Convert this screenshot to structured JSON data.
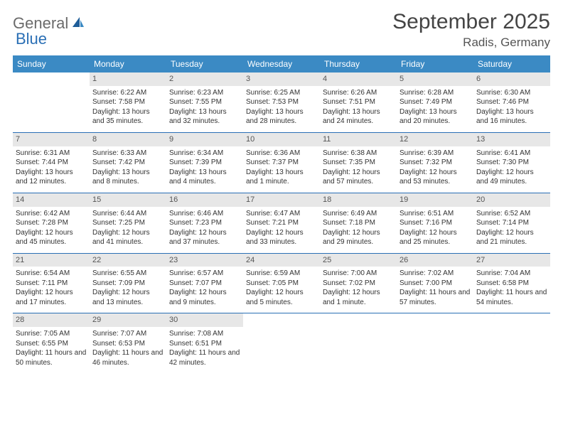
{
  "brand": {
    "general": "General",
    "blue": "Blue"
  },
  "title": "September 2025",
  "location": "Radis, Germany",
  "colors": {
    "header_bg": "#3b8ac4",
    "header_text": "#ffffff",
    "daynum_bg": "#e7e7e7",
    "daynum_text": "#555555",
    "rule": "#2a6fb5",
    "body_text": "#333333",
    "brand_gray": "#6b6b6b",
    "brand_blue": "#2a6fb5",
    "page_bg": "#ffffff"
  },
  "weekdays": [
    "Sunday",
    "Monday",
    "Tuesday",
    "Wednesday",
    "Thursday",
    "Friday",
    "Saturday"
  ],
  "weeks": [
    [
      {
        "n": "",
        "sr": "",
        "ss": "",
        "dl": ""
      },
      {
        "n": "1",
        "sr": "Sunrise: 6:22 AM",
        "ss": "Sunset: 7:58 PM",
        "dl": "Daylight: 13 hours and 35 minutes."
      },
      {
        "n": "2",
        "sr": "Sunrise: 6:23 AM",
        "ss": "Sunset: 7:55 PM",
        "dl": "Daylight: 13 hours and 32 minutes."
      },
      {
        "n": "3",
        "sr": "Sunrise: 6:25 AM",
        "ss": "Sunset: 7:53 PM",
        "dl": "Daylight: 13 hours and 28 minutes."
      },
      {
        "n": "4",
        "sr": "Sunrise: 6:26 AM",
        "ss": "Sunset: 7:51 PM",
        "dl": "Daylight: 13 hours and 24 minutes."
      },
      {
        "n": "5",
        "sr": "Sunrise: 6:28 AM",
        "ss": "Sunset: 7:49 PM",
        "dl": "Daylight: 13 hours and 20 minutes."
      },
      {
        "n": "6",
        "sr": "Sunrise: 6:30 AM",
        "ss": "Sunset: 7:46 PM",
        "dl": "Daylight: 13 hours and 16 minutes."
      }
    ],
    [
      {
        "n": "7",
        "sr": "Sunrise: 6:31 AM",
        "ss": "Sunset: 7:44 PM",
        "dl": "Daylight: 13 hours and 12 minutes."
      },
      {
        "n": "8",
        "sr": "Sunrise: 6:33 AM",
        "ss": "Sunset: 7:42 PM",
        "dl": "Daylight: 13 hours and 8 minutes."
      },
      {
        "n": "9",
        "sr": "Sunrise: 6:34 AM",
        "ss": "Sunset: 7:39 PM",
        "dl": "Daylight: 13 hours and 4 minutes."
      },
      {
        "n": "10",
        "sr": "Sunrise: 6:36 AM",
        "ss": "Sunset: 7:37 PM",
        "dl": "Daylight: 13 hours and 1 minute."
      },
      {
        "n": "11",
        "sr": "Sunrise: 6:38 AM",
        "ss": "Sunset: 7:35 PM",
        "dl": "Daylight: 12 hours and 57 minutes."
      },
      {
        "n": "12",
        "sr": "Sunrise: 6:39 AM",
        "ss": "Sunset: 7:32 PM",
        "dl": "Daylight: 12 hours and 53 minutes."
      },
      {
        "n": "13",
        "sr": "Sunrise: 6:41 AM",
        "ss": "Sunset: 7:30 PM",
        "dl": "Daylight: 12 hours and 49 minutes."
      }
    ],
    [
      {
        "n": "14",
        "sr": "Sunrise: 6:42 AM",
        "ss": "Sunset: 7:28 PM",
        "dl": "Daylight: 12 hours and 45 minutes."
      },
      {
        "n": "15",
        "sr": "Sunrise: 6:44 AM",
        "ss": "Sunset: 7:25 PM",
        "dl": "Daylight: 12 hours and 41 minutes."
      },
      {
        "n": "16",
        "sr": "Sunrise: 6:46 AM",
        "ss": "Sunset: 7:23 PM",
        "dl": "Daylight: 12 hours and 37 minutes."
      },
      {
        "n": "17",
        "sr": "Sunrise: 6:47 AM",
        "ss": "Sunset: 7:21 PM",
        "dl": "Daylight: 12 hours and 33 minutes."
      },
      {
        "n": "18",
        "sr": "Sunrise: 6:49 AM",
        "ss": "Sunset: 7:18 PM",
        "dl": "Daylight: 12 hours and 29 minutes."
      },
      {
        "n": "19",
        "sr": "Sunrise: 6:51 AM",
        "ss": "Sunset: 7:16 PM",
        "dl": "Daylight: 12 hours and 25 minutes."
      },
      {
        "n": "20",
        "sr": "Sunrise: 6:52 AM",
        "ss": "Sunset: 7:14 PM",
        "dl": "Daylight: 12 hours and 21 minutes."
      }
    ],
    [
      {
        "n": "21",
        "sr": "Sunrise: 6:54 AM",
        "ss": "Sunset: 7:11 PM",
        "dl": "Daylight: 12 hours and 17 minutes."
      },
      {
        "n": "22",
        "sr": "Sunrise: 6:55 AM",
        "ss": "Sunset: 7:09 PM",
        "dl": "Daylight: 12 hours and 13 minutes."
      },
      {
        "n": "23",
        "sr": "Sunrise: 6:57 AM",
        "ss": "Sunset: 7:07 PM",
        "dl": "Daylight: 12 hours and 9 minutes."
      },
      {
        "n": "24",
        "sr": "Sunrise: 6:59 AM",
        "ss": "Sunset: 7:05 PM",
        "dl": "Daylight: 12 hours and 5 minutes."
      },
      {
        "n": "25",
        "sr": "Sunrise: 7:00 AM",
        "ss": "Sunset: 7:02 PM",
        "dl": "Daylight: 12 hours and 1 minute."
      },
      {
        "n": "26",
        "sr": "Sunrise: 7:02 AM",
        "ss": "Sunset: 7:00 PM",
        "dl": "Daylight: 11 hours and 57 minutes."
      },
      {
        "n": "27",
        "sr": "Sunrise: 7:04 AM",
        "ss": "Sunset: 6:58 PM",
        "dl": "Daylight: 11 hours and 54 minutes."
      }
    ],
    [
      {
        "n": "28",
        "sr": "Sunrise: 7:05 AM",
        "ss": "Sunset: 6:55 PM",
        "dl": "Daylight: 11 hours and 50 minutes."
      },
      {
        "n": "29",
        "sr": "Sunrise: 7:07 AM",
        "ss": "Sunset: 6:53 PM",
        "dl": "Daylight: 11 hours and 46 minutes."
      },
      {
        "n": "30",
        "sr": "Sunrise: 7:08 AM",
        "ss": "Sunset: 6:51 PM",
        "dl": "Daylight: 11 hours and 42 minutes."
      },
      {
        "n": "",
        "sr": "",
        "ss": "",
        "dl": ""
      },
      {
        "n": "",
        "sr": "",
        "ss": "",
        "dl": ""
      },
      {
        "n": "",
        "sr": "",
        "ss": "",
        "dl": ""
      },
      {
        "n": "",
        "sr": "",
        "ss": "",
        "dl": ""
      }
    ]
  ]
}
